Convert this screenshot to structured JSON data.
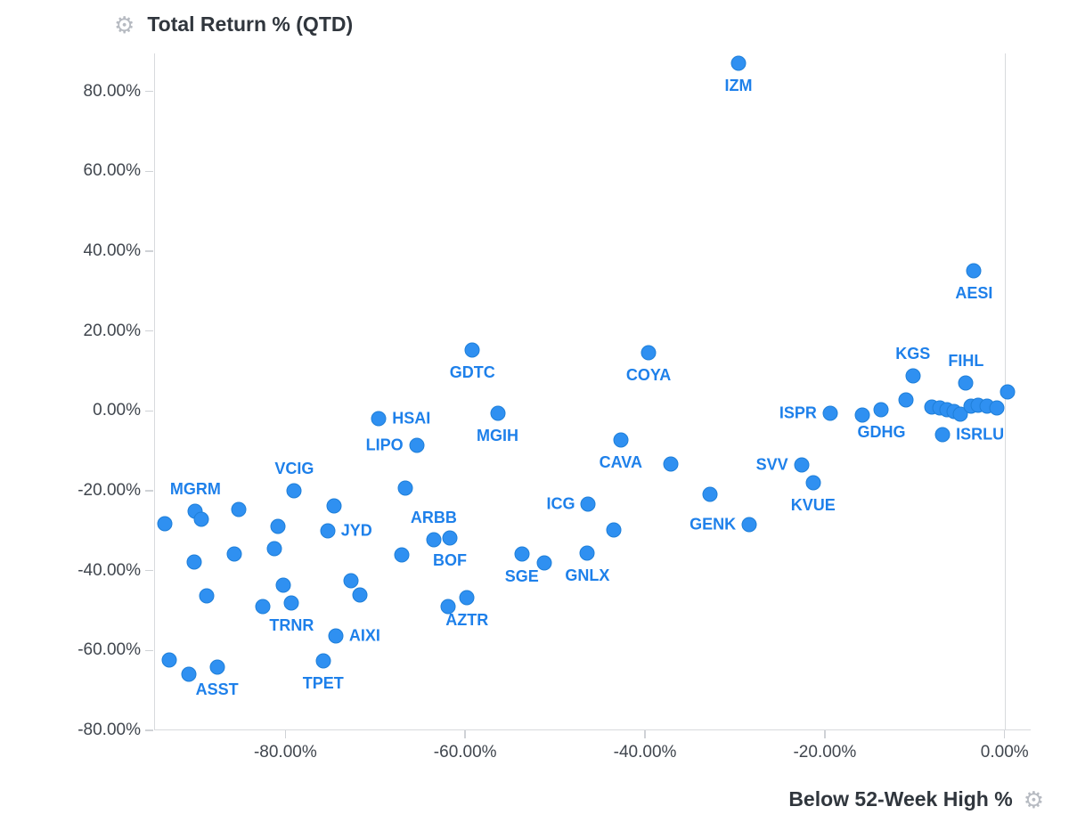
{
  "icons": {
    "settings": "⚙"
  },
  "chart_data": {
    "type": "scatter",
    "title": "Total Return % (QTD)",
    "xlabel": "Below 52-Week High %",
    "ylabel": "Total Return % (QTD)",
    "x_ticks": [
      -80,
      -60,
      -40,
      -20,
      0
    ],
    "y_ticks": [
      80,
      60,
      40,
      20,
      0,
      -20,
      -40,
      -60,
      -80
    ],
    "x_range": [
      -94.6,
      2.9
    ],
    "y_range": [
      -80,
      89.5
    ],
    "grid": "zero-x-gridline-only",
    "legend": "none",
    "colors": {
      "dot": "#2f90f1",
      "dot_border": "#1f7fd9",
      "point_label": "#1e80ea",
      "axis_line": "#d8dadd",
      "tick_text": "#40464e",
      "title_text": "#30363d",
      "gear": "#b7bbc2"
    },
    "points": [
      {
        "t": "IZM",
        "x": -29.6,
        "y": 87.0,
        "lp": "below"
      },
      {
        "t": "AESI",
        "x": -3.4,
        "y": 35.0,
        "lp": "below"
      },
      {
        "t": "KGS",
        "x": -10.2,
        "y": 8.7,
        "lp": "above"
      },
      {
        "t": "FIHL",
        "x": -4.3,
        "y": 7.0,
        "lp": "above"
      },
      {
        "t": "ISRLU",
        "x": -6.9,
        "y": -5.9,
        "lp": "right"
      },
      {
        "t": "GDHG",
        "x": -13.7,
        "y": 0.3,
        "lp": "below"
      },
      {
        "t": "ISPR",
        "x": -19.4,
        "y": -0.6,
        "lp": "left"
      },
      {
        "t": "SVV",
        "x": -22.6,
        "y": -13.5,
        "lp": "left"
      },
      {
        "t": "KVUE",
        "x": -21.3,
        "y": -18.0,
        "lp": "below"
      },
      {
        "t": "GENK",
        "x": -28.4,
        "y": -28.5,
        "lp": "left"
      },
      {
        "t": "COYA",
        "x": -39.6,
        "y": 14.6,
        "lp": "below"
      },
      {
        "t": "CAVA",
        "x": -42.7,
        "y": -7.3,
        "lp": "below"
      },
      {
        "t": "ICG",
        "x": -46.3,
        "y": -23.4,
        "lp": "left"
      },
      {
        "t": "GNLX",
        "x": -46.4,
        "y": -35.6,
        "lp": "below"
      },
      {
        "t": "SGE",
        "x": -53.7,
        "y": -35.8,
        "lp": "below"
      },
      {
        "t": "MGIH",
        "x": -56.4,
        "y": -0.6,
        "lp": "below"
      },
      {
        "t": "GDTC",
        "x": -59.2,
        "y": 15.2,
        "lp": "below"
      },
      {
        "t": "HSAI",
        "x": -69.6,
        "y": -1.9,
        "lp": "right"
      },
      {
        "t": "LIPO",
        "x": -65.4,
        "y": -8.6,
        "lp": "left"
      },
      {
        "t": "VCIG",
        "x": -79.0,
        "y": -20.0,
        "lp": "above"
      },
      {
        "t": "MGRM",
        "x": -90.0,
        "y": -25.1,
        "lp": "above"
      },
      {
        "t": "ARBB",
        "x": -63.5,
        "y": -32.3,
        "lp": "above"
      },
      {
        "t": "BOF",
        "x": -61.7,
        "y": -31.8,
        "lp": "below"
      },
      {
        "t": "AZTR",
        "x": -59.8,
        "y": -46.8,
        "lp": "below"
      },
      {
        "t": "JYD",
        "x": -75.3,
        "y": -30.0,
        "lp": "right"
      },
      {
        "t": "AIXI",
        "x": -74.4,
        "y": -56.4,
        "lp": "right"
      },
      {
        "t": "TRNR",
        "x": -79.3,
        "y": -48.1,
        "lp": "below"
      },
      {
        "t": "TPET",
        "x": -75.8,
        "y": -62.6,
        "lp": "below"
      },
      {
        "t": "ASST",
        "x": -87.6,
        "y": -64.2,
        "lp": "below"
      },
      {
        "t": "",
        "x": -93.4,
        "y": -28.3
      },
      {
        "t": "",
        "x": -89.3,
        "y": -27.1
      },
      {
        "t": "",
        "x": -85.2,
        "y": -24.7
      },
      {
        "t": "",
        "x": -90.1,
        "y": -37.8
      },
      {
        "t": "",
        "x": -85.7,
        "y": -35.8
      },
      {
        "t": "",
        "x": -88.8,
        "y": -46.3
      },
      {
        "t": "",
        "x": -82.5,
        "y": -49.0
      },
      {
        "t": "",
        "x": -81.2,
        "y": -34.5
      },
      {
        "t": "",
        "x": -80.8,
        "y": -28.9
      },
      {
        "t": "",
        "x": -80.2,
        "y": -43.6
      },
      {
        "t": "",
        "x": -92.9,
        "y": -62.4
      },
      {
        "t": "",
        "x": -90.7,
        "y": -65.9
      },
      {
        "t": "",
        "x": -74.6,
        "y": -23.8
      },
      {
        "t": "",
        "x": -72.7,
        "y": -42.5
      },
      {
        "t": "",
        "x": -71.7,
        "y": -46.1
      },
      {
        "t": "",
        "x": -67.1,
        "y": -36.1
      },
      {
        "t": "",
        "x": -66.7,
        "y": -19.3
      },
      {
        "t": "",
        "x": -61.9,
        "y": -49.0
      },
      {
        "t": "",
        "x": -51.2,
        "y": -38.1
      },
      {
        "t": "",
        "x": -43.5,
        "y": -29.8
      },
      {
        "t": "",
        "x": -37.1,
        "y": -13.3
      },
      {
        "t": "",
        "x": -32.8,
        "y": -20.9
      },
      {
        "t": "",
        "x": -15.8,
        "y": -1.0
      },
      {
        "t": "",
        "x": -11.0,
        "y": 2.7
      },
      {
        "t": "",
        "x": -8.1,
        "y": 1.0
      },
      {
        "t": "",
        "x": -7.2,
        "y": 0.7
      },
      {
        "t": "",
        "x": -6.4,
        "y": 0.3
      },
      {
        "t": "",
        "x": -5.6,
        "y": -0.2
      },
      {
        "t": "",
        "x": -4.9,
        "y": -0.8
      },
      {
        "t": "",
        "x": -3.7,
        "y": 1.2
      },
      {
        "t": "",
        "x": -2.9,
        "y": 1.4
      },
      {
        "t": "",
        "x": -2.0,
        "y": 1.2
      },
      {
        "t": "",
        "x": -0.9,
        "y": 0.7
      },
      {
        "t": "",
        "x": 0.3,
        "y": 4.8
      }
    ]
  }
}
